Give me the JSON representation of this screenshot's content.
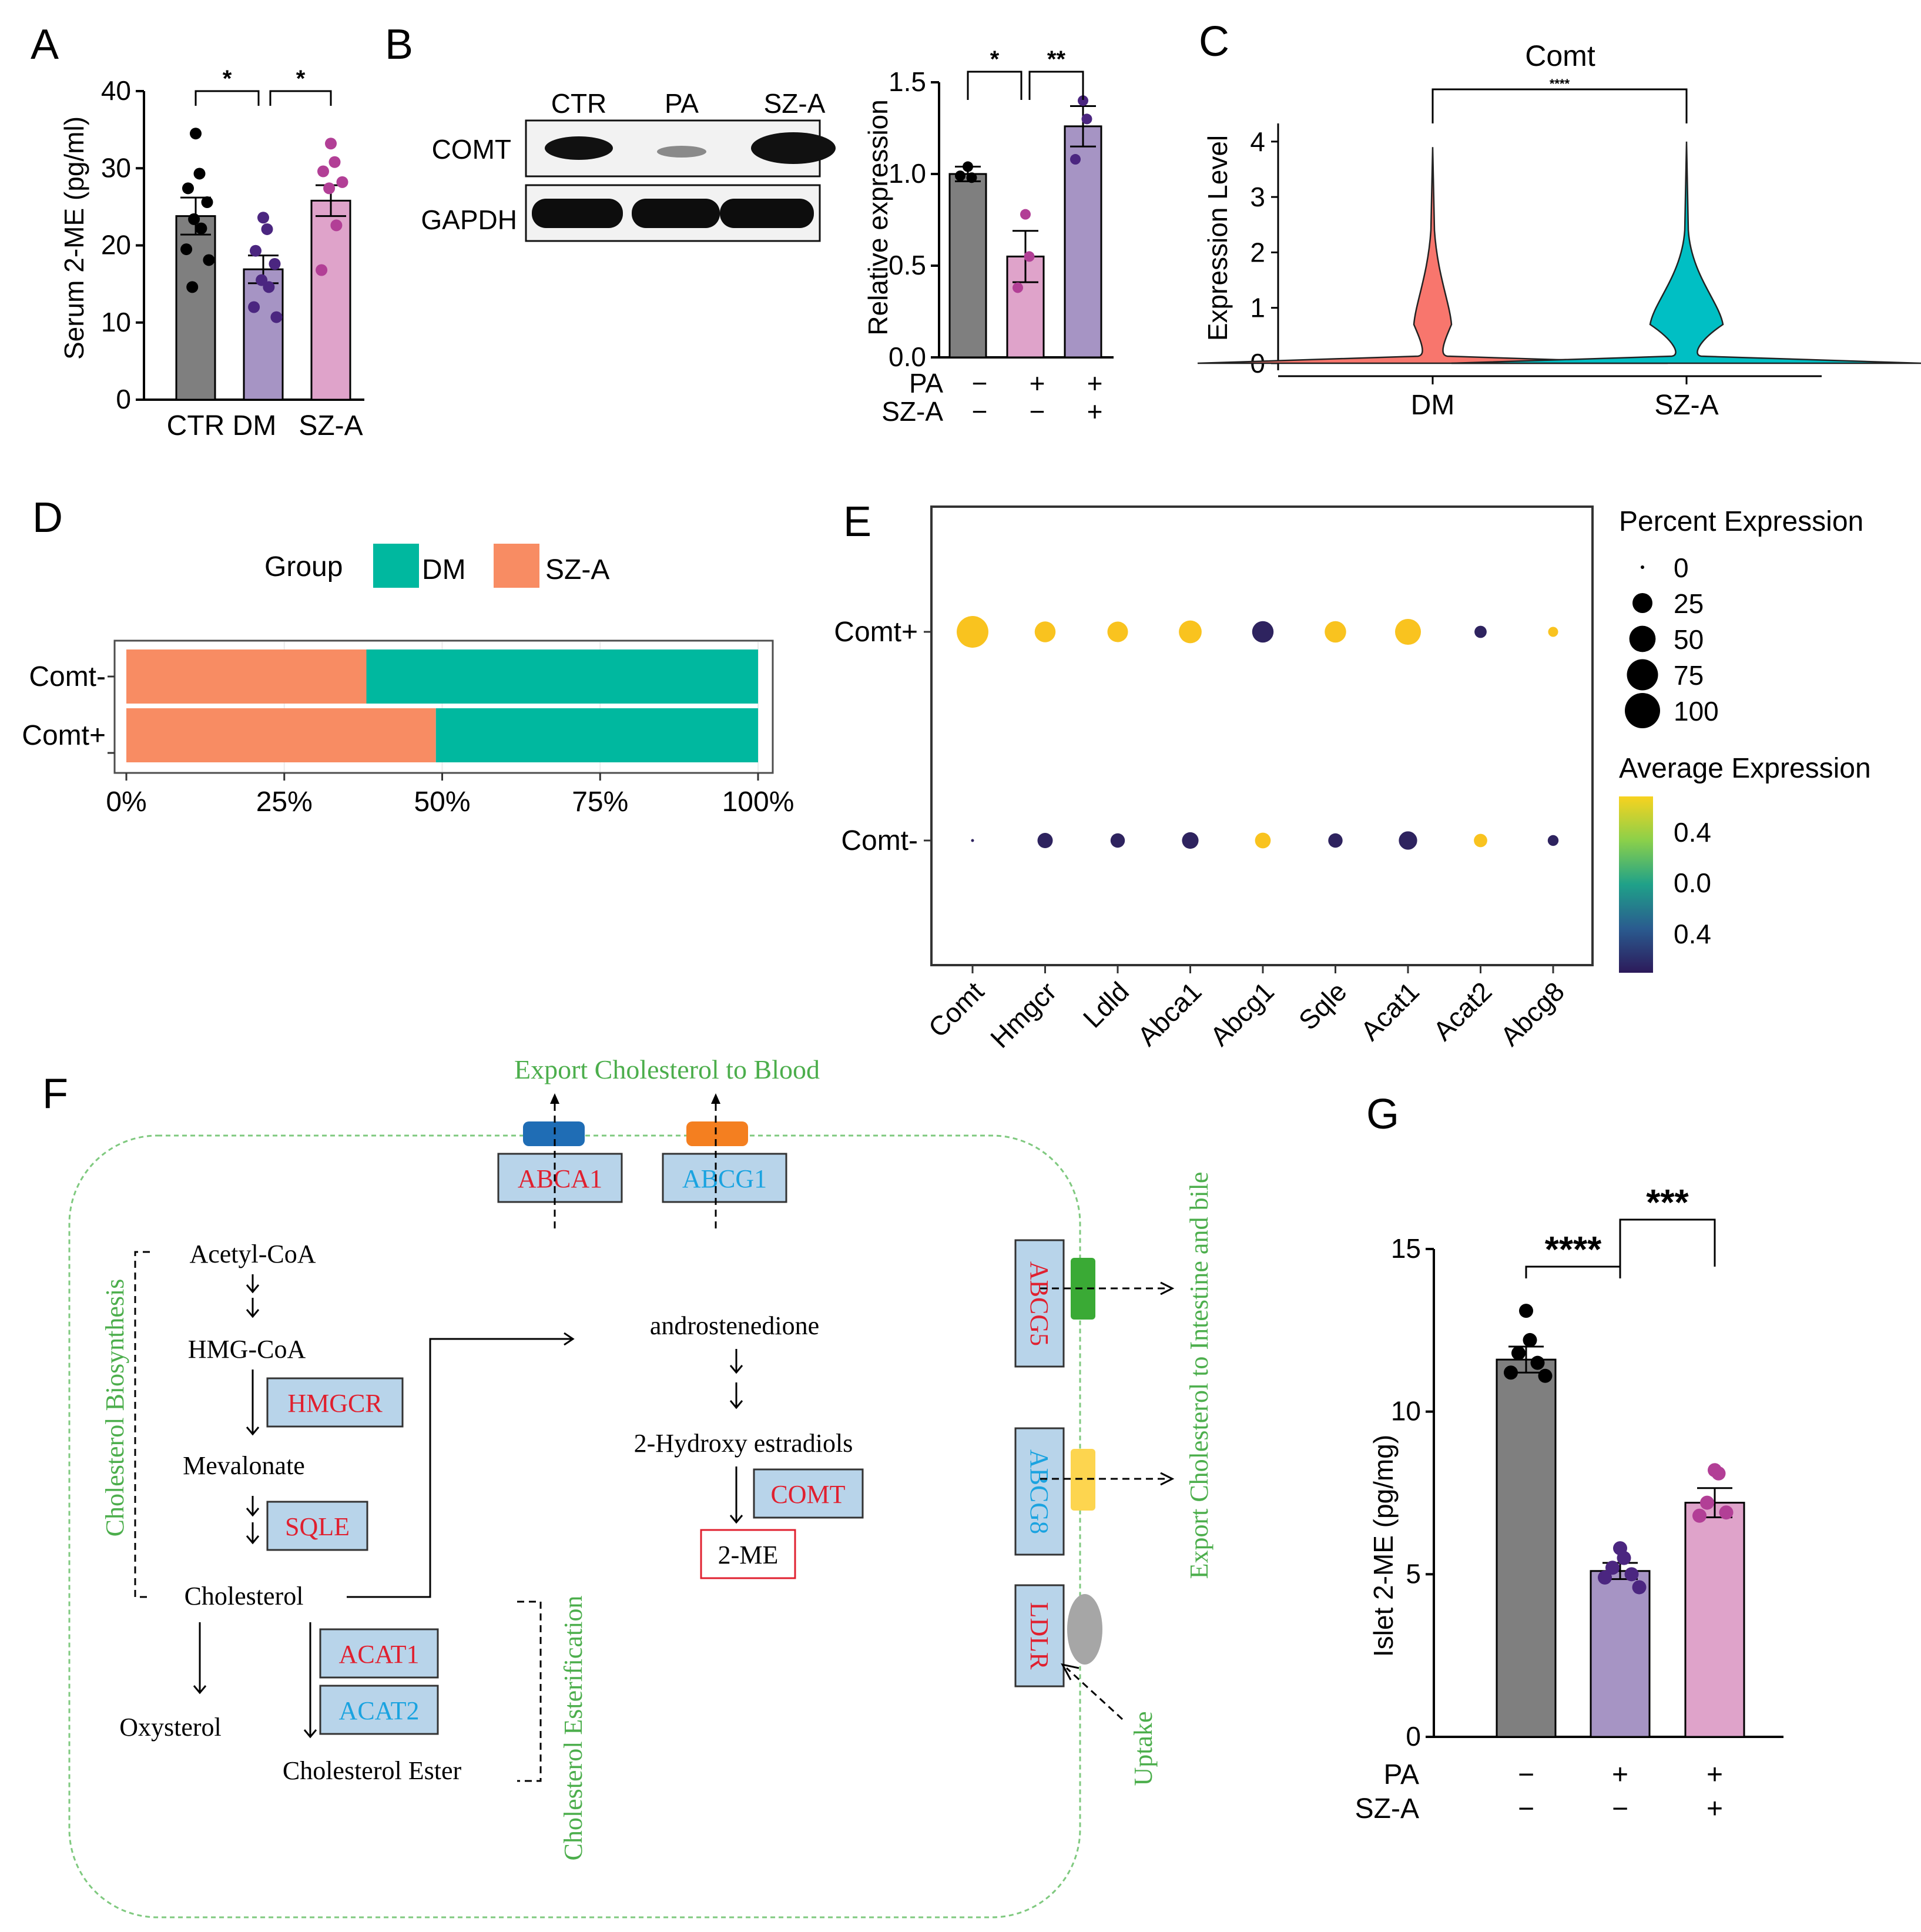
{
  "panels": {
    "A": "A",
    "B": "B",
    "C": "C",
    "D": "D",
    "E": "E",
    "F": "F",
    "G": "G"
  },
  "colors": {
    "ctr": "#7f7f7f",
    "dm": "#a694c4",
    "sza": "#dfa3ca",
    "dm_dot": "#4b2680",
    "sza_dot": "#b23f96",
    "teal": "#00b89f",
    "orange": "#f88c63",
    "violin_red": "#f8766d",
    "violin_teal": "#00bfc4",
    "green": "#4cae4c",
    "red": "#e0202f",
    "cyan": "#1aa3e0",
    "boxfill": "#b8d4ea",
    "abca1_cap": "#1f6db5",
    "abcg1_cap": "#f47f20",
    "abcg5_cap": "#3aaa35",
    "abcg8_cap": "#fdd54f",
    "ldlr_cap": "#a6a6a6"
  },
  "chart_data": [
    {
      "id": "A",
      "type": "bar",
      "title": "",
      "categories": [
        "CTR",
        "DM",
        "SZ-A"
      ],
      "values": [
        23.8,
        16.9,
        25.8
      ],
      "errors": [
        2.4,
        1.8,
        2.0
      ],
      "points": [
        [
          34.5,
          29.3,
          27.4,
          25.6,
          23.4,
          22.2,
          19.5,
          18.1,
          14.6
        ],
        [
          23.6,
          22.1,
          19.3,
          17.6,
          15.5,
          14.6,
          12.0,
          10.7
        ],
        [
          33.2,
          30.8,
          29.6,
          28.2,
          27.4,
          22.6,
          16.8
        ]
      ],
      "xlabel": "",
      "ylabel": "Serum 2-ME (pg/ml)",
      "ylim": [
        0,
        40
      ],
      "yticks": [
        "0",
        "10",
        "20",
        "30",
        "40"
      ],
      "sig": [
        "*",
        "*"
      ]
    },
    {
      "id": "B",
      "type": "bar",
      "blot": {
        "lanes": [
          "CTR",
          "PA",
          "SZ-A"
        ],
        "rows": [
          "COMT",
          "GAPDH"
        ]
      },
      "categories": [
        "1",
        "2",
        "3"
      ],
      "values": [
        1.0,
        0.55,
        1.26
      ],
      "errors": [
        0.04,
        0.14,
        0.11
      ],
      "points": [
        [
          1.04,
          0.98,
          0.99
        ],
        [
          0.78,
          0.55,
          0.38
        ],
        [
          1.4,
          1.3,
          1.08
        ]
      ],
      "ylabel": "Relative expression",
      "ylim": [
        0,
        1.5
      ],
      "yticks": [
        "0.0",
        "0.5",
        "1.0",
        "1.5"
      ],
      "treatments": [
        {
          "name": "PA",
          "signs": [
            "−",
            "+",
            "+"
          ]
        },
        {
          "name": "SZ-A",
          "signs": [
            "−",
            "−",
            "+"
          ]
        }
      ],
      "sig": [
        "*",
        "**"
      ]
    },
    {
      "id": "C",
      "type": "violin",
      "title": "Comt",
      "categories": [
        "DM",
        "SZ-A"
      ],
      "ylabel": "Expression Level",
      "ylim": [
        0,
        4
      ],
      "yticks": [
        "0",
        "1",
        "2",
        "3",
        "4"
      ],
      "max": [
        3.9,
        4.0
      ],
      "sig": "****"
    },
    {
      "id": "D",
      "type": "bar",
      "orientation": "horizontal",
      "stacked": true,
      "legend_title": "Group",
      "series": [
        {
          "name": "DM",
          "values": [
            62,
            51
          ]
        },
        {
          "name": "SZ-A",
          "values": [
            38,
            49
          ]
        }
      ],
      "categories": [
        "Comt-",
        "Comt+"
      ],
      "xticks": [
        "0%",
        "25%",
        "50%",
        "75%",
        "100%"
      ]
    },
    {
      "id": "E",
      "type": "scatter",
      "subtype": "dotplot",
      "genes": [
        "Comt",
        "Hmgcr",
        "Ldld",
        "Abca1",
        "Abcg1",
        "Sqle",
        "Acat1",
        "Acat2",
        "Abcg8"
      ],
      "groups": [
        "Comt+",
        "Comt-"
      ],
      "percent": [
        [
          78,
          28,
          27,
          35,
          30,
          30,
          48,
          6,
          3
        ],
        [
          2,
          12,
          10,
          15,
          13,
          10,
          20,
          8,
          4
        ]
      ],
      "avg_color": [
        [
          "#f9c31f",
          "#f9c31f",
          "#f9c31f",
          "#f9c31f",
          "#2e235f",
          "#f9c31f",
          "#f9c31f",
          "#2e235f",
          "#f9c31f"
        ],
        [
          "#2e235f",
          "#2e235f",
          "#2e235f",
          "#2e235f",
          "#f9c31f",
          "#2e235f",
          "#2e235f",
          "#f9c31f",
          "#2e235f"
        ]
      ],
      "size_legend_title": "Percent Expression",
      "size_legend": [
        "0",
        "25",
        "50",
        "75",
        "100"
      ],
      "color_legend_title": "Average Expression",
      "color_legend": [
        "0.4",
        "0.0",
        "0.4"
      ]
    },
    {
      "id": "G",
      "type": "bar",
      "categories": [
        "1",
        "2",
        "3"
      ],
      "values": [
        11.6,
        5.1,
        7.2
      ],
      "errors": [
        0.4,
        0.25,
        0.45
      ],
      "points": [
        [
          13.1,
          12.2,
          11.8,
          11.5,
          11.2,
          11.1
        ],
        [
          5.8,
          5.5,
          5.2,
          5.0,
          4.9,
          4.6
        ],
        [
          8.2,
          8.1,
          7.2,
          6.9,
          6.8
        ]
      ],
      "ylabel": "Islet 2-ME (pg/mg)",
      "ylim": [
        0,
        15
      ],
      "yticks": [
        "0",
        "5",
        "10",
        "15"
      ],
      "treatments": [
        {
          "name": "PA",
          "signs": [
            "−",
            "+",
            "+"
          ]
        },
        {
          "name": "SZ-A",
          "signs": [
            "−",
            "−",
            "+"
          ]
        }
      ],
      "sig": [
        "****",
        "***"
      ]
    }
  ],
  "diagram": {
    "export_blood": "Export Cholesterol to Blood",
    "export_intestine": "Export Cholesterol to Intestine and bile",
    "uptake": "Uptake",
    "biosynthesis": "Cholesterol Biosynthesis",
    "esterification": "Cholesterol Esterification",
    "abca1": "ABCA1",
    "abcg1": "ABCG1",
    "abcg5": "ABCG5",
    "abcg8": "ABCG8",
    "ldlr": "LDLR",
    "acetyl": "Acetyl-CoA",
    "hmg": "HMG-CoA",
    "hmgcr": "HMGCR",
    "mevalonate": "Mevalonate",
    "sqle": "SQLE",
    "cholesterol": "Cholesterol",
    "oxysterol": "Oxysterol",
    "acat1": "ACAT1",
    "acat2": "ACAT2",
    "ester": "Cholesterol Ester",
    "androstenedione": "androstenedione",
    "hydroxy": "2-Hydroxy estradiols",
    "comt": "COMT",
    "me": "2-ME"
  }
}
